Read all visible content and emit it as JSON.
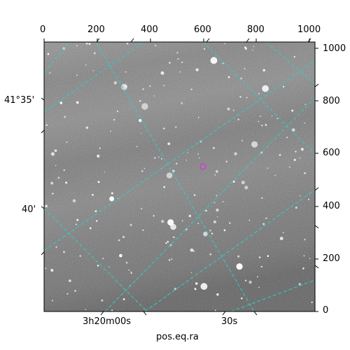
{
  "figure": {
    "xlabel": "pos.eq.ra",
    "pixel_axes": {
      "top_ticks": [
        "0",
        "200",
        "400",
        "600",
        "800",
        "1000"
      ],
      "right_ticks": [
        "0",
        "200",
        "400",
        "600",
        "800",
        "1000"
      ]
    },
    "world_axes": {
      "bottom_ticks": [
        "3h20m00s",
        "30s"
      ],
      "left_ticks": [
        "41°35'",
        "40'"
      ]
    },
    "grid_color": "#33cccc",
    "marker_color": "#d83ad8"
  }
}
